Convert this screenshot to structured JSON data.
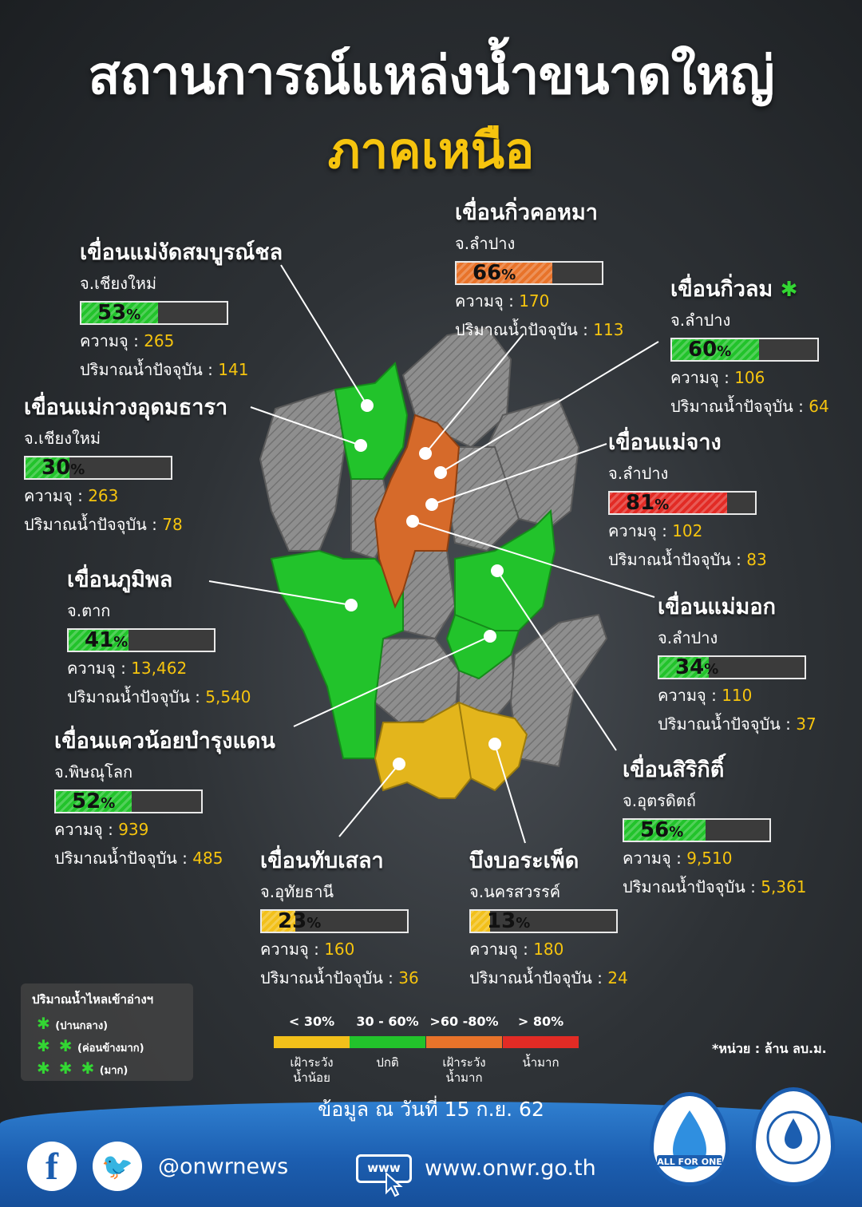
{
  "header": {
    "title": "สถานการณ์แหล่งน้ำขนาดใหญ่",
    "subtitle": "ภาคเหนือ"
  },
  "labels": {
    "capacity": "ความจุ : ",
    "current": "ปริมาณน้ำปัจจุบัน : ",
    "pct_sign": "%"
  },
  "dams": [
    {
      "name": "เขื่อนแม่งัดสมบูรณ์ชล",
      "province": "จ.เชียงใหม่",
      "percent": 53,
      "percent_text": "53",
      "capacity": "265",
      "current": "141",
      "color": "#22c32b",
      "stars": ""
    },
    {
      "name": "เขื่อนกิ่วคอหมา",
      "province": "จ.ลำปาง",
      "percent": 66,
      "percent_text": "66",
      "capacity": "170",
      "current": "113",
      "color": "#e8732a",
      "stars": ""
    },
    {
      "name": "เขื่อนกิ่วลม",
      "province": "จ.ลำปาง",
      "percent": 60,
      "percent_text": "60",
      "capacity": "106",
      "current": "64",
      "color": "#22c32b",
      "stars": "✱"
    },
    {
      "name": "เขื่อนแม่กวงอุดมธารา",
      "province": "จ.เชียงใหม่",
      "percent": 30,
      "percent_text": "30",
      "capacity": "263",
      "current": "78",
      "color": "#22c32b",
      "stars": ""
    },
    {
      "name": "เขื่อนแม่จาง",
      "province": "จ.ลำปาง",
      "percent": 81,
      "percent_text": "81",
      "capacity": "102",
      "current": "83",
      "color": "#e22b25",
      "stars": ""
    },
    {
      "name": "เขื่อนภูมิพล",
      "province": "จ.ตาก",
      "percent": 41,
      "percent_text": "41",
      "capacity": "13,462",
      "current": "5,540",
      "color": "#22c32b",
      "stars": ""
    },
    {
      "name": "เขื่อนแม่มอก",
      "province": "จ.ลำปาง",
      "percent": 34,
      "percent_text": "34",
      "capacity": "110",
      "current": "37",
      "color": "#22c32b",
      "stars": ""
    },
    {
      "name": "เขื่อนแควน้อยบำรุงแดน",
      "province": "จ.พิษณุโลก",
      "percent": 52,
      "percent_text": "52",
      "capacity": "939",
      "current": "485",
      "color": "#22c32b",
      "stars": ""
    },
    {
      "name": "เขื่อนสิริกิติ์",
      "province": "จ.อุตรดิตถ์",
      "percent": 56,
      "percent_text": "56",
      "capacity": "9,510",
      "current": "5,361",
      "color": "#22c32b",
      "stars": ""
    },
    {
      "name": "เขื่อนทับเสลา",
      "province": "จ.อุทัยธานี",
      "percent": 23,
      "percent_text": "23",
      "capacity": "160",
      "current": "36",
      "color": "#f2c01a",
      "stars": ""
    },
    {
      "name": "บึงบอระเพ็ด",
      "province": "จ.นครสวรรค์",
      "percent": 13,
      "percent_text": "13",
      "capacity": "180",
      "current": "24",
      "color": "#f2c01a",
      "stars": ""
    }
  ],
  "inflow_legend": {
    "title": "ปริมาณน้ำไหลเข้าอ่างฯ",
    "items": [
      {
        "stars": "✱",
        "label": "(ปานกลาง)"
      },
      {
        "stars": "✱ ✱",
        "label": "(ค่อนข้างมาก)"
      },
      {
        "stars": "✱ ✱ ✱",
        "label": "(มาก)"
      }
    ]
  },
  "scale": [
    {
      "range": "< 30%",
      "desc1": "เฝ้าระวัง",
      "desc2": "น้ำน้อย",
      "color": "#f2c01a"
    },
    {
      "range": "30 - 60%",
      "desc1": "ปกติ",
      "desc2": "",
      "color": "#22c32b"
    },
    {
      "range": ">60 -80%",
      "desc1": "เฝ้าระวัง",
      "desc2": "น้ำมาก",
      "color": "#e8732a"
    },
    {
      "range": "> 80%",
      "desc1": "น้ำมาก",
      "desc2": "",
      "color": "#e22b25"
    }
  ],
  "unit_note": "*หน่วย : ล้าน ลบ.ม.",
  "date_note": "ข้อมูล ณ วันที่ 15 ก.ย. 62",
  "footer": {
    "facebook_glyph": "f",
    "twitter_glyph": "🐦",
    "handle": "@onwrnews",
    "www_label": "www",
    "website": "www.onwr.go.th",
    "logo1_text": "ALL FOR ONE"
  },
  "map_colors": {
    "gray": "#8b8b8b",
    "green": "#22c32b",
    "orange": "#d66a2a",
    "yellow": "#e3b51c"
  }
}
